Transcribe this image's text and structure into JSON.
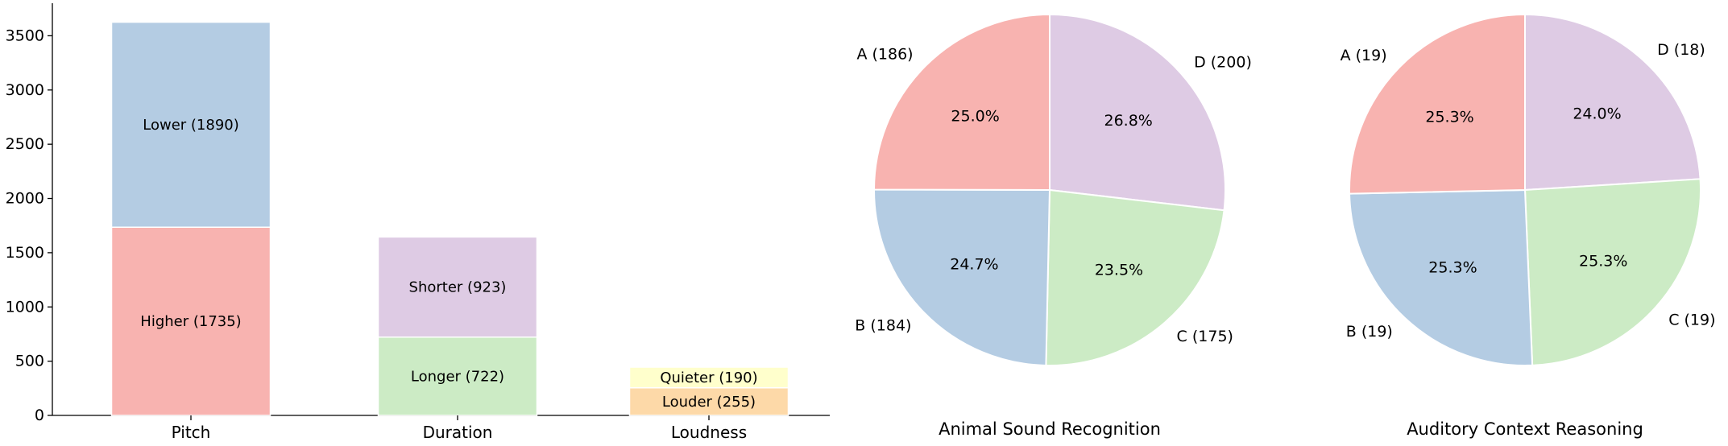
{
  "chart_data": [
    {
      "type": "bar",
      "stacked": true,
      "categories": [
        "Pitch",
        "Duration",
        "Loudness"
      ],
      "ylim": [
        0,
        3800
      ],
      "yticks": [
        0,
        500,
        1000,
        1500,
        2000,
        2500,
        3000,
        3500
      ],
      "grid": false,
      "stacks": [
        {
          "category": "Pitch",
          "segments": [
            {
              "label": "Higher (1735)",
              "value": 1735,
              "color": "#f8b3b0"
            },
            {
              "label": "Lower (1890)",
              "value": 1890,
              "color": "#b4cce3"
            }
          ]
        },
        {
          "category": "Duration",
          "segments": [
            {
              "label": "Longer (722)",
              "value": 722,
              "color": "#ccebc5"
            },
            {
              "label": "Shorter (923)",
              "value": 923,
              "color": "#decbe4"
            }
          ]
        },
        {
          "category": "Loudness",
          "segments": [
            {
              "label": "Louder (255)",
              "value": 255,
              "color": "#fdd9a8"
            },
            {
              "label": "Quieter (190)",
              "value": 190,
              "color": "#ffffcc"
            }
          ]
        }
      ]
    },
    {
      "type": "pie",
      "title": "Animal Sound Recognition",
      "slices": [
        {
          "label": "D (200)",
          "value": 200,
          "pct": "26.8%",
          "color": "#decbe4"
        },
        {
          "label": "C (175)",
          "value": 175,
          "pct": "23.5%",
          "color": "#ccebc5"
        },
        {
          "label": "B (184)",
          "value": 184,
          "pct": "24.7%",
          "color": "#b4cce3"
        },
        {
          "label": "A (186)",
          "value": 186,
          "pct": "25.0%",
          "color": "#f8b3b0"
        }
      ]
    },
    {
      "type": "pie",
      "title": "Auditory Context Reasoning",
      "slices": [
        {
          "label": "D (18)",
          "value": 18,
          "pct": "24.0%",
          "color": "#decbe4"
        },
        {
          "label": "C (19)",
          "value": 19,
          "pct": "25.3%",
          "color": "#ccebc5"
        },
        {
          "label": "B (19)",
          "value": 19,
          "pct": "25.3%",
          "color": "#b4cce3"
        },
        {
          "label": "A (19)",
          "value": 19,
          "pct": "25.3%",
          "color": "#f8b3b0"
        }
      ]
    }
  ]
}
